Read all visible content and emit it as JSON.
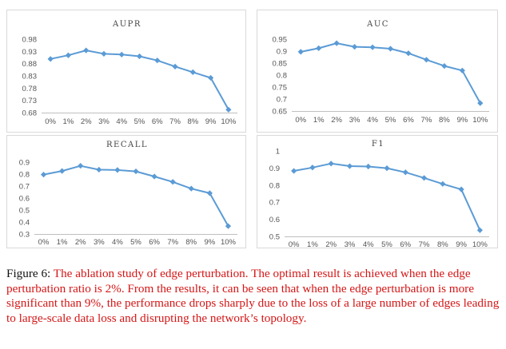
{
  "colors": {
    "line": "#5b9bd5",
    "grid": "#d9d9d9",
    "axis": "#bfbfbf"
  },
  "chart_data": [
    {
      "type": "line",
      "title": "AUPR",
      "categories": [
        "0%",
        "1%",
        "2%",
        "3%",
        "4%",
        "5%",
        "6%",
        "7%",
        "8%",
        "9%",
        "10%"
      ],
      "values": [
        0.899,
        0.914,
        0.934,
        0.92,
        0.917,
        0.91,
        0.893,
        0.868,
        0.845,
        0.822,
        0.692
      ],
      "yticks": [
        "0.98",
        "0.93",
        "0.88",
        "0.83",
        "0.78",
        "0.73",
        "0.68"
      ],
      "ylim": [
        0.68,
        0.98
      ],
      "grid": false
    },
    {
      "type": "line",
      "title": "AUC",
      "categories": [
        "0%",
        "1%",
        "2%",
        "3%",
        "4%",
        "5%",
        "6%",
        "7%",
        "8%",
        "9%",
        "10%"
      ],
      "values": [
        0.897,
        0.912,
        0.933,
        0.918,
        0.916,
        0.91,
        0.891,
        0.864,
        0.838,
        0.819,
        0.683
      ],
      "yticks": [
        "0.95",
        "0.9",
        "0.85",
        "0.8",
        "0.75",
        "0.7",
        "0.65"
      ],
      "ylim": [
        0.65,
        0.95
      ],
      "grid": false
    },
    {
      "type": "line",
      "title": "RECALL",
      "categories": [
        "0%",
        "1%",
        "2%",
        "3%",
        "4%",
        "5%",
        "6%",
        "7%",
        "8%",
        "9%",
        "10%"
      ],
      "values": [
        0.796,
        0.826,
        0.869,
        0.837,
        0.834,
        0.823,
        0.78,
        0.735,
        0.679,
        0.641,
        0.366
      ],
      "yticks": [
        "0.9",
        "0.8",
        "0.7",
        "0.6",
        "0.5",
        "0.4",
        "0.3"
      ],
      "ylim": [
        0.3,
        0.9
      ],
      "grid": false
    },
    {
      "type": "line",
      "title": "F1",
      "categories": [
        "0%",
        "1%",
        "2%",
        "3%",
        "4%",
        "5%",
        "6%",
        "7%",
        "8%",
        "9%",
        "10%"
      ],
      "values": [
        0.883,
        0.903,
        0.926,
        0.911,
        0.909,
        0.899,
        0.875,
        0.842,
        0.807,
        0.775,
        0.536
      ],
      "yticks": [
        "1",
        "0.9",
        "0.8",
        "0.7",
        "0.6",
        "0.5"
      ],
      "ylim": [
        0.5,
        1.0
      ],
      "grid": false
    }
  ],
  "caption": {
    "label": "Figure 6:",
    "text": "The ablation study of edge perturbation. The optimal result is achieved when the edge perturbation ratio is 2%. From the results, it can be seen that when the edge perturbation is more significant than 9%, the performance drops sharply due to the loss of a large number of edges leading to large-scale data loss and disrupting the network’s topology."
  }
}
